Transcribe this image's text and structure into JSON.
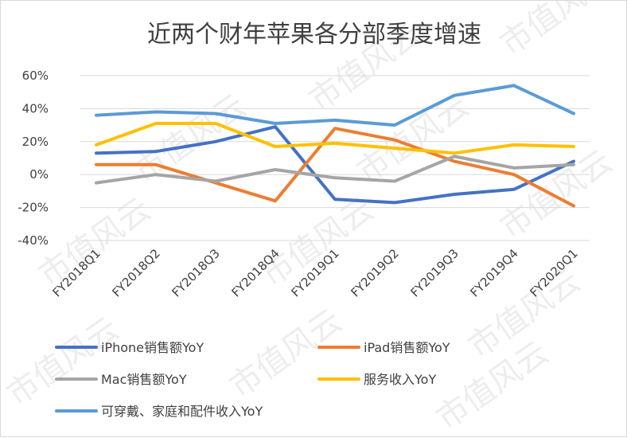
{
  "chart_data": {
    "type": "line",
    "title": "近两个财年苹果各分部季度增速",
    "xlabel": "",
    "ylabel": "",
    "categories": [
      "FY2018Q1",
      "FY2018Q2",
      "FY2018Q3",
      "FY2018Q4",
      "FY2019Q1",
      "FY2019Q2",
      "FY2019Q3",
      "FY2019Q4",
      "FY2020Q1"
    ],
    "ylim": [
      -0.4,
      0.6
    ],
    "yticks": [
      "60%",
      "40%",
      "20%",
      "0%",
      "-20%",
      "-40%"
    ],
    "yticks_values": [
      0.6,
      0.4,
      0.2,
      0.0,
      -0.2,
      -0.4
    ],
    "grid": true,
    "legend_position": "bottom",
    "series": [
      {
        "name": "iPhone销售额YoY",
        "color": "#4472C4",
        "values": [
          0.13,
          0.14,
          0.2,
          0.29,
          -0.15,
          -0.17,
          -0.12,
          -0.09,
          0.08
        ]
      },
      {
        "name": "iPad销售额YoY",
        "color": "#ED7D31",
        "values": [
          0.06,
          0.06,
          -0.05,
          -0.16,
          0.28,
          0.21,
          0.08,
          0.0,
          -0.19
        ]
      },
      {
        "name": "Mac销售额YoY",
        "color": "#A5A5A5",
        "values": [
          -0.05,
          0.0,
          -0.04,
          0.03,
          -0.02,
          -0.04,
          0.11,
          0.04,
          0.06
        ]
      },
      {
        "name": "服务收入YoY",
        "color": "#FFC000",
        "values": [
          0.18,
          0.31,
          0.31,
          0.17,
          0.19,
          0.16,
          0.13,
          0.18,
          0.17
        ]
      },
      {
        "name": "可穿戴、家庭和配件收入YoY",
        "color": "#5B9BD5",
        "values": [
          0.36,
          0.38,
          0.37,
          0.31,
          0.33,
          0.3,
          0.48,
          0.54,
          0.37
        ]
      }
    ],
    "gridline_color": "#d9d9d9",
    "watermark_text": "市值风云"
  }
}
